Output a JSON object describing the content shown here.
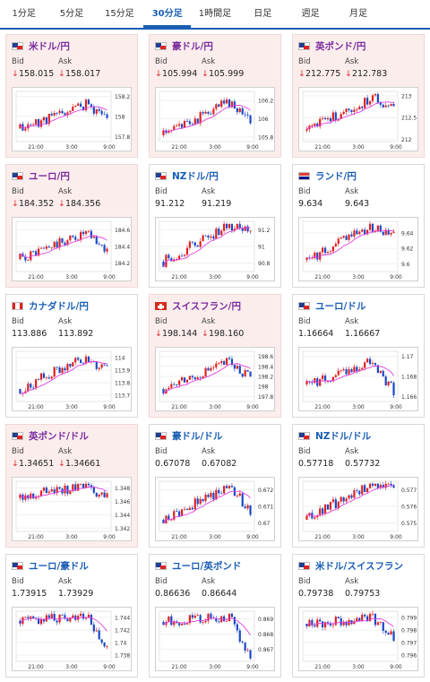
{
  "tabs": [
    {
      "label": "1分足",
      "active": false
    },
    {
      "label": "5分足",
      "active": false
    },
    {
      "label": "15分足",
      "active": false
    },
    {
      "label": "30分足",
      "active": true
    },
    {
      "label": "1時間足",
      "active": false
    },
    {
      "label": "日足",
      "active": false
    },
    {
      "label": "週足",
      "active": false
    },
    {
      "label": "月足",
      "active": false
    }
  ],
  "bid_label": "Bid",
  "ask_label": "Ask",
  "down_arrow": "↓",
  "colors": {
    "accent": "#1a5eb5",
    "bullish": "#e02020",
    "bearish": "#1a47c9",
    "ma": "#e040e0"
  },
  "cards": [
    {
      "title": "米ドル/円",
      "flag": "us",
      "pink": true,
      "bid": "158.015",
      "ask": "158.017",
      "down": true,
      "chart_data": {
        "type": "candlestick",
        "x_ticks": [
          "21:00",
          "3:00",
          "9:00"
        ],
        "y_ticks": [
          "158.2",
          "158",
          "157.8"
        ],
        "ylim": [
          157.75,
          158.25
        ],
        "start": 157.88,
        "end": 158.0,
        "peak": 158.12,
        "seed": 11
      }
    },
    {
      "title": "豪ドル/円",
      "flag": "au",
      "pink": true,
      "bid": "105.994",
      "ask": "105.999",
      "down": true,
      "chart_data": {
        "type": "candlestick",
        "x_ticks": [
          "21:00",
          "3:00",
          "9:00"
        ],
        "y_ticks": [
          "106.2",
          "106",
          "105.8"
        ],
        "ylim": [
          105.75,
          106.3
        ],
        "start": 105.82,
        "end": 106.0,
        "peak": 106.18,
        "seed": 23
      }
    },
    {
      "title": "英ポンド/円",
      "flag": "gb",
      "pink": true,
      "bid": "212.775",
      "ask": "212.783",
      "down": true,
      "chart_data": {
        "type": "candlestick",
        "x_ticks": [
          "21:00",
          "3:00",
          "9:00"
        ],
        "y_ticks": [
          "213",
          "212.5",
          "212"
        ],
        "ylim": [
          211.95,
          213.1
        ],
        "start": 212.2,
        "end": 212.78,
        "peak": 212.95,
        "seed": 37
      }
    },
    {
      "title": "ユーロ/円",
      "flag": "eu",
      "pink": true,
      "bid": "184.352",
      "ask": "184.356",
      "down": true,
      "chart_data": {
        "type": "candlestick",
        "x_ticks": [
          "21:00",
          "3:00",
          "9:00"
        ],
        "y_ticks": [
          "184.6",
          "184.4",
          "184.2"
        ],
        "ylim": [
          184.1,
          184.7
        ],
        "start": 184.25,
        "end": 184.35,
        "peak": 184.55,
        "seed": 41
      }
    },
    {
      "title": "NZドル/円",
      "flag": "nz",
      "pink": false,
      "bid": "91.212",
      "ask": "91.219",
      "down": false,
      "chart_data": {
        "type": "candlestick",
        "x_ticks": [
          "21:00",
          "3:00",
          "9:00"
        ],
        "y_ticks": [
          "91.2",
          "91",
          "90.8"
        ],
        "ylim": [
          90.7,
          91.3
        ],
        "start": 90.82,
        "end": 91.2,
        "peak": 91.25,
        "seed": 53
      }
    },
    {
      "title": "ランド/円",
      "flag": "za",
      "pink": false,
      "bid": "9.634",
      "ask": "9.643",
      "down": false,
      "chart_data": {
        "type": "candlestick",
        "x_ticks": [
          "21:00",
          "3:00",
          "9:00"
        ],
        "y_ticks": [
          "9.64",
          "9.62",
          "9.6"
        ],
        "ylim": [
          9.59,
          9.655
        ],
        "start": 9.605,
        "end": 9.636,
        "peak": 9.648,
        "seed": 61
      }
    },
    {
      "title": "カナダドル/円",
      "flag": "ca",
      "pink": false,
      "bid": "113.886",
      "ask": "113.892",
      "down": false,
      "chart_data": {
        "type": "candlestick",
        "x_ticks": [
          "21:00",
          "3:00",
          "9:00"
        ],
        "y_ticks": [
          "114",
          "113.9",
          "113.8",
          "113.7"
        ],
        "ylim": [
          113.65,
          114.05
        ],
        "start": 113.75,
        "end": 113.89,
        "peak": 114.0,
        "seed": 71
      }
    },
    {
      "title": "スイスフラン/円",
      "flag": "ch",
      "pink": true,
      "bid": "198.144",
      "ask": "198.160",
      "down": true,
      "chart_data": {
        "type": "candlestick",
        "x_ticks": [
          "21:00",
          "3:00",
          "9:00"
        ],
        "y_ticks": [
          "198.6",
          "198.4",
          "198.2",
          "198",
          "197.8"
        ],
        "ylim": [
          197.7,
          198.7
        ],
        "start": 197.95,
        "end": 198.15,
        "peak": 198.5,
        "seed": 83
      }
    },
    {
      "title": "ユーロ/ドル",
      "flag": "eu",
      "pink": false,
      "bid": "1.16664",
      "ask": "1.16667",
      "down": false,
      "chart_data": {
        "type": "candlestick",
        "x_ticks": [
          "21:00",
          "3:00",
          "9:00"
        ],
        "y_ticks": [
          "1.17",
          "1.168",
          "1.166"
        ],
        "ylim": [
          1.1655,
          1.1705
        ],
        "start": 1.1672,
        "end": 1.1666,
        "peak": 1.1695,
        "seed": 97
      }
    },
    {
      "title": "英ポンド/ドル",
      "flag": "gb",
      "pink": true,
      "bid": "1.34651",
      "ask": "1.34661",
      "down": true,
      "chart_data": {
        "type": "candlestick",
        "x_ticks": [
          "21:00",
          "3:00",
          "9:00"
        ],
        "y_ticks": [
          "1.348",
          "1.346",
          "1.344",
          "1.342"
        ],
        "ylim": [
          1.3415,
          1.349
        ],
        "start": 1.3465,
        "end": 1.3465,
        "peak": 1.3485,
        "seed": 103
      }
    },
    {
      "title": "豪ドル/ドル",
      "flag": "au",
      "pink": false,
      "bid": "0.67078",
      "ask": "0.67082",
      "down": false,
      "chart_data": {
        "type": "candlestick",
        "x_ticks": [
          "21:00",
          "3:00",
          "9:00"
        ],
        "y_ticks": [
          "0.672",
          "0.671",
          "0.67"
        ],
        "ylim": [
          0.6695,
          0.6725
        ],
        "start": 0.6702,
        "end": 0.6708,
        "peak": 0.6722,
        "seed": 113
      }
    },
    {
      "title": "NZドル/ドル",
      "flag": "nz",
      "pink": false,
      "bid": "0.57718",
      "ask": "0.57732",
      "down": false,
      "chart_data": {
        "type": "candlestick",
        "x_ticks": [
          "21:00",
          "3:00",
          "9:00"
        ],
        "y_ticks": [
          "0.577",
          "0.576",
          "0.575"
        ],
        "ylim": [
          0.5745,
          0.5775
        ],
        "start": 0.5752,
        "end": 0.5772,
        "peak": 0.5774,
        "seed": 127
      }
    },
    {
      "title": "ユーロ/豪ドル",
      "flag": "eu",
      "pink": false,
      "bid": "1.73915",
      "ask": "1.73929",
      "down": false,
      "chart_data": {
        "type": "candlestick",
        "x_ticks": [
          "21:00",
          "3:00",
          "9:00"
        ],
        "y_ticks": [
          "1.744",
          "1.742",
          "1.74",
          "1.738"
        ],
        "ylim": [
          1.737,
          1.745
        ],
        "start": 1.7435,
        "end": 1.7392,
        "peak": 1.7445,
        "seed": 131
      }
    },
    {
      "title": "ユーロ/英ポンド",
      "flag": "eu",
      "pink": false,
      "bid": "0.86636",
      "ask": "0.86644",
      "down": false,
      "chart_data": {
        "type": "candlestick",
        "x_ticks": [
          "21:00",
          "3:00",
          "9:00"
        ],
        "y_ticks": [
          "0.869",
          "0.868",
          "0.867"
        ],
        "ylim": [
          0.8662,
          0.8695
        ],
        "start": 0.8688,
        "end": 0.8664,
        "peak": 0.8692,
        "seed": 137
      }
    },
    {
      "title": "米ドル/スイスフラン",
      "flag": "us",
      "pink": false,
      "bid": "0.79738",
      "ask": "0.79753",
      "down": false,
      "chart_data": {
        "type": "candlestick",
        "x_ticks": [
          "21:00",
          "3:00",
          "9:00"
        ],
        "y_ticks": [
          "0.799",
          "0.798",
          "0.797",
          "0.796"
        ],
        "ylim": [
          0.7955,
          0.7995
        ],
        "start": 0.7985,
        "end": 0.7974,
        "peak": 0.799,
        "seed": 149
      }
    }
  ]
}
